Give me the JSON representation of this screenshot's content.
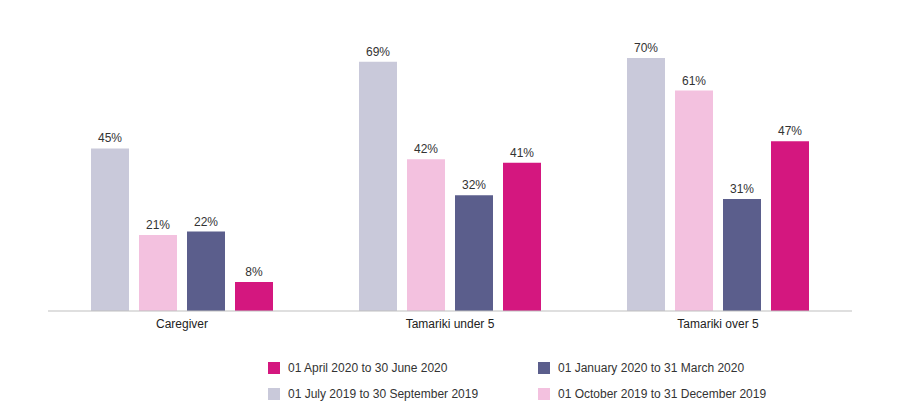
{
  "chart_data": {
    "type": "bar",
    "categories": [
      "Caregiver",
      "Tamariki under 5",
      "Tamariki over 5"
    ],
    "series": [
      {
        "name": "01 July 2019 to 30 September 2019",
        "color": "#c9c9da",
        "values": [
          45,
          69,
          70
        ],
        "value_labels": [
          "45%",
          "69%",
          "70%"
        ]
      },
      {
        "name": "01 October 2019 to 31 December 2019",
        "color": "#f3c1df",
        "values": [
          21,
          42,
          61
        ],
        "value_labels": [
          "21%",
          "42%",
          "61%"
        ]
      },
      {
        "name": "01 January 2020 to 31 March 2020",
        "color": "#5b5e8c",
        "values": [
          22,
          32,
          31
        ],
        "value_labels": [
          "22%",
          "32%",
          "31%"
        ]
      },
      {
        "name": "01 April 2020 to 30 June 2020",
        "color": "#d4177f",
        "values": [
          8,
          41,
          47
        ],
        "value_labels": [
          "8%",
          "41%",
          "47%"
        ]
      }
    ],
    "ylim": [
      0,
      75
    ],
    "data_labels": true,
    "tick_labels": "x",
    "legend": "bottom"
  }
}
